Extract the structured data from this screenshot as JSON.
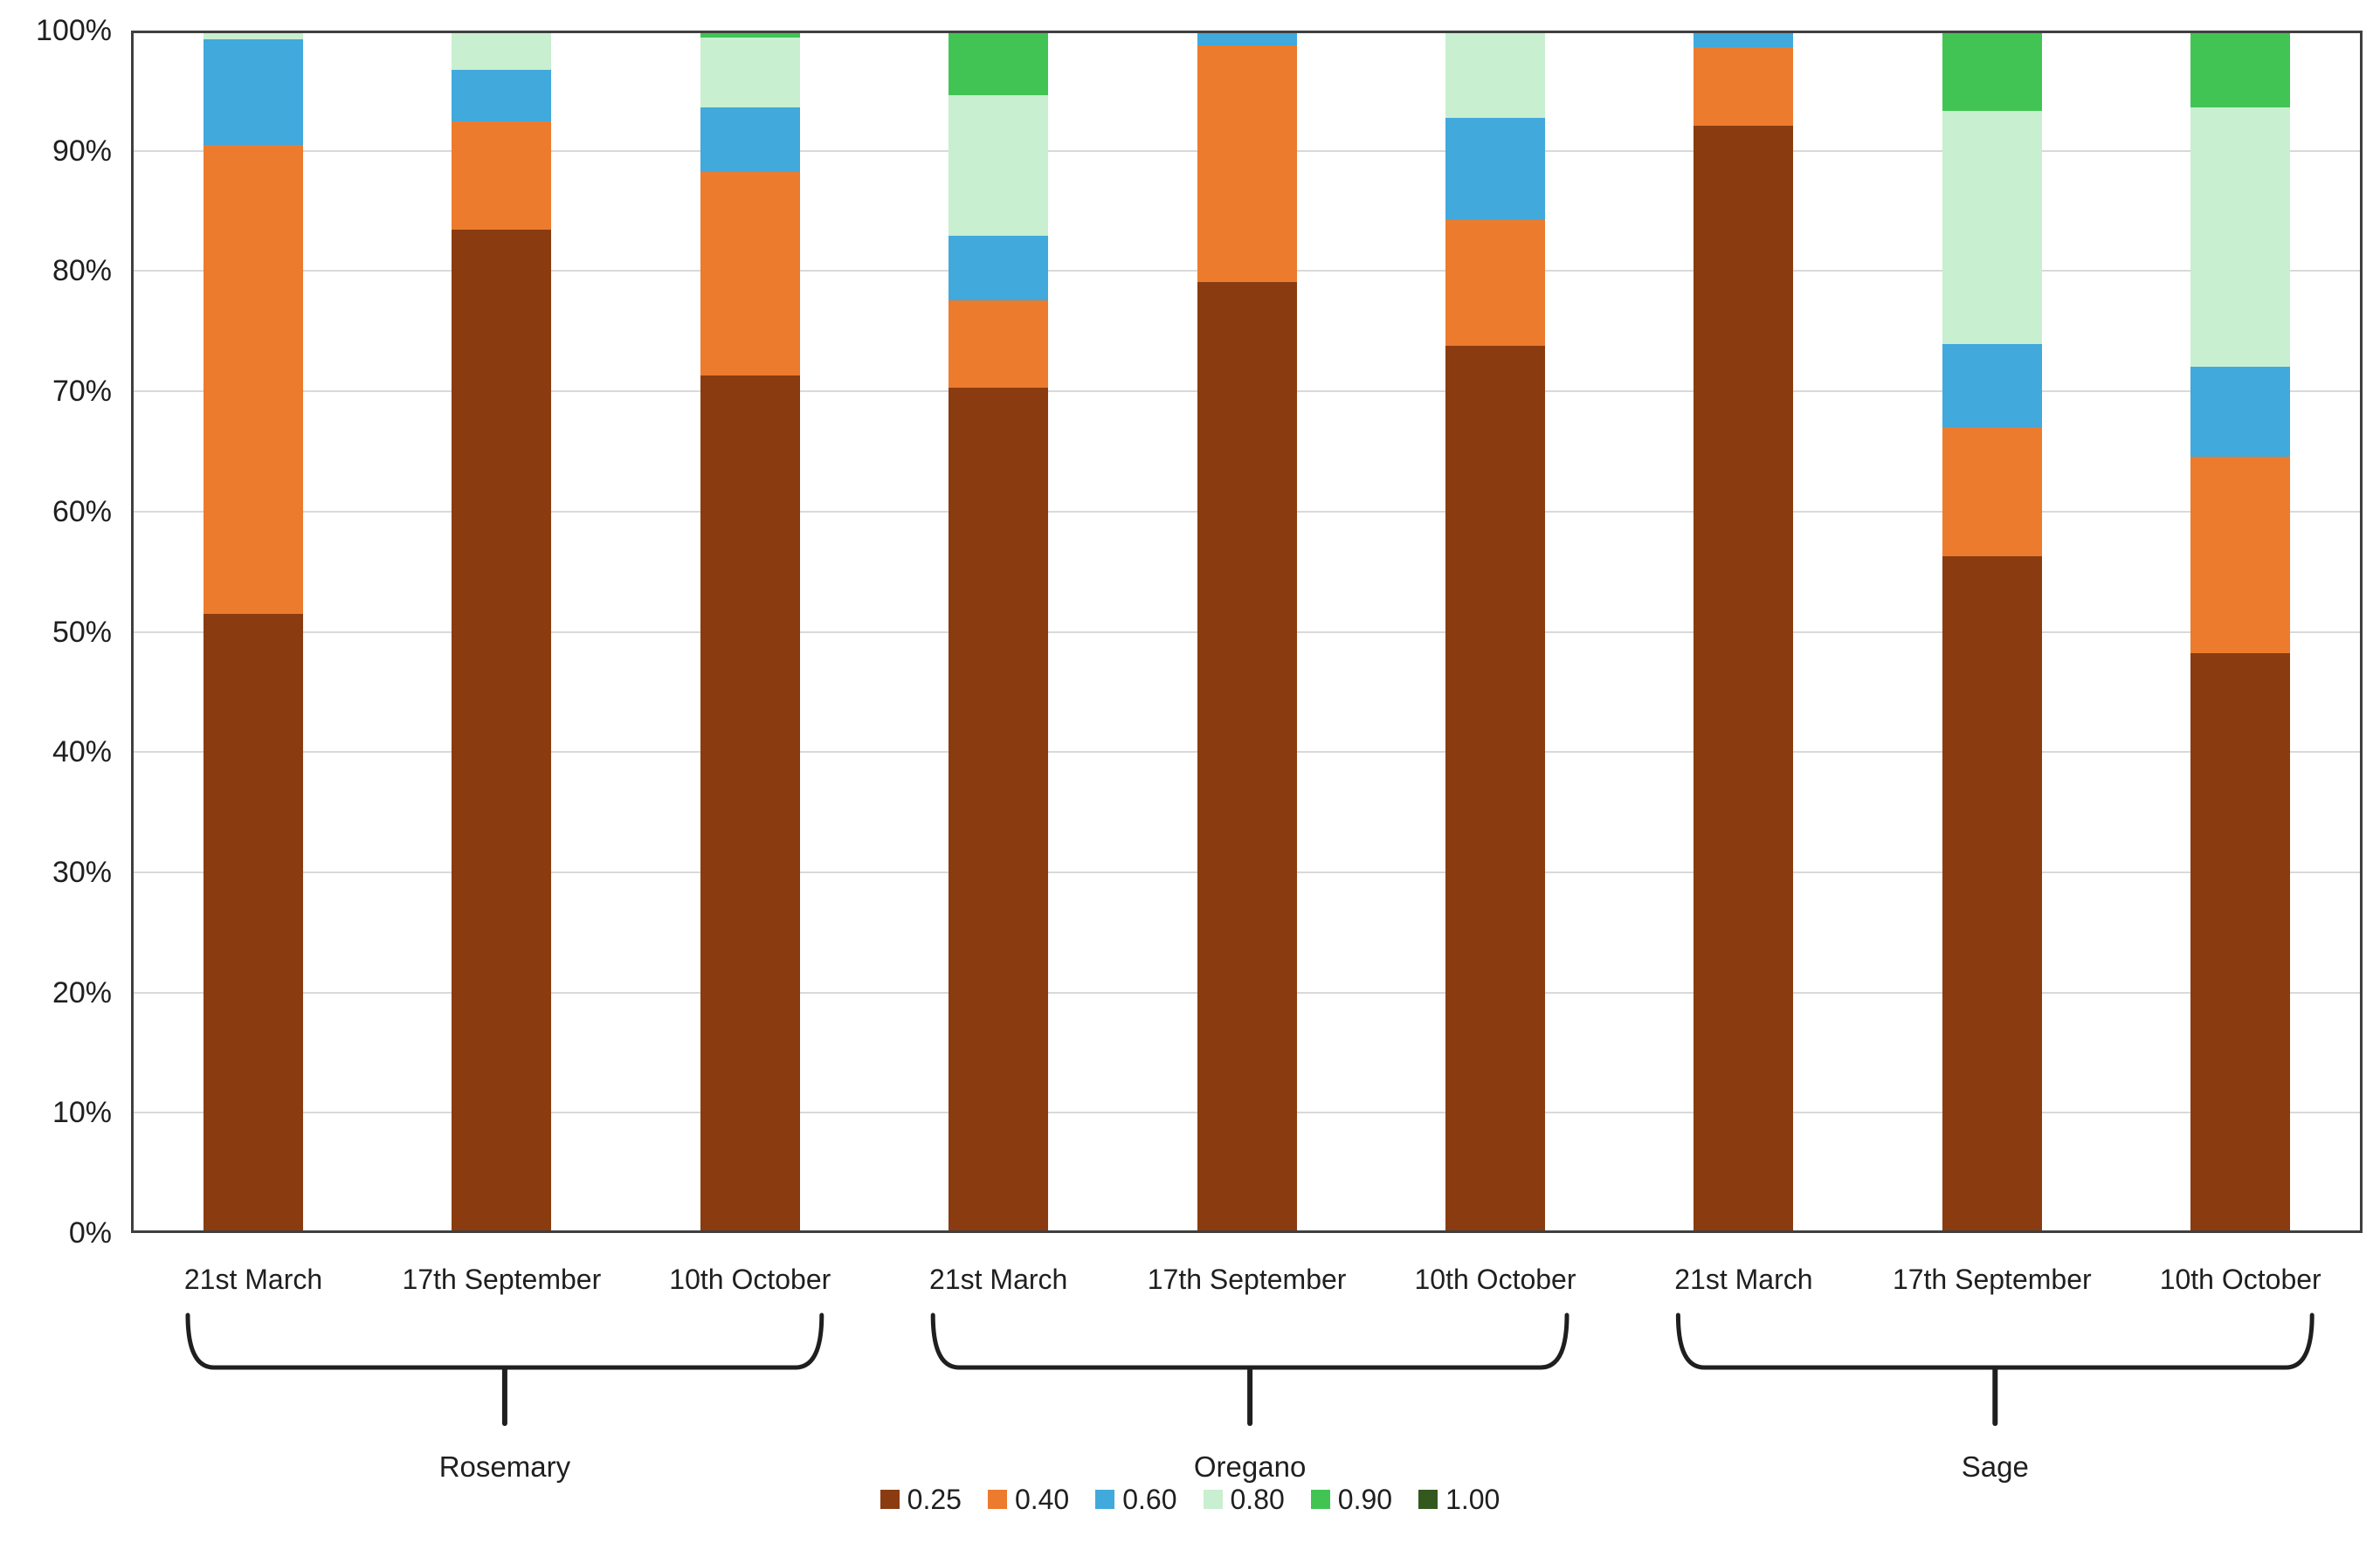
{
  "chart_data": {
    "type": "bar",
    "subtype": "stacked-100-percent",
    "title": "",
    "xlabel": "",
    "ylabel": "",
    "ylim": [
      0,
      100
    ],
    "grid": "horizontal",
    "legend_position": "bottom",
    "y_tick_labels": [
      "0%",
      "10%",
      "20%",
      "30%",
      "40%",
      "50%",
      "60%",
      "70%",
      "80%",
      "90%",
      "100%"
    ],
    "categories": [
      "21st March",
      "17th September",
      "10th October",
      "21st March",
      "17th September",
      "10th October",
      "21st March",
      "17th September",
      "10th October"
    ],
    "groups": [
      {
        "label": "Rosemary",
        "bars": [
          0,
          1,
          2
        ]
      },
      {
        "label": "Oregano",
        "bars": [
          3,
          4,
          5
        ]
      },
      {
        "label": "Sage",
        "bars": [
          6,
          7,
          8
        ]
      }
    ],
    "series": [
      {
        "name": "0.25",
        "color": "#8a3c10",
        "values": [
          51.5,
          83.6,
          71.4,
          70.4,
          79.2,
          73.9,
          92.3,
          56.3,
          48.2
        ]
      },
      {
        "name": "0.40",
        "color": "#ec7b2e",
        "values": [
          39.2,
          9.0,
          17.0,
          7.3,
          19.8,
          10.5,
          6.5,
          10.8,
          16.4
        ]
      },
      {
        "name": "0.60",
        "color": "#41a9dc",
        "values": [
          8.8,
          4.3,
          5.4,
          5.4,
          1.0,
          8.5,
          1.2,
          6.9,
          7.5
        ]
      },
      {
        "name": "0.80",
        "color": "#c8efcf",
        "values": [
          0.5,
          3.1,
          5.8,
          11.7,
          0.0,
          7.1,
          0.0,
          19.5,
          21.7
        ]
      },
      {
        "name": "0.90",
        "color": "#42c455",
        "values": [
          0.0,
          0.0,
          0.4,
          5.2,
          0.0,
          0.0,
          0.0,
          6.5,
          6.2
        ]
      },
      {
        "name": "1.00",
        "color": "#34591f",
        "values": [
          0.0,
          0.0,
          0.0,
          0.0,
          0.0,
          0.0,
          0.0,
          0.0,
          0.0
        ]
      }
    ],
    "colors": {
      "background": "#ffffff",
      "axis": "#3f3f3f",
      "grid": "#d9d9d9",
      "text": "#1f1f1f",
      "bracket": "#1f1f1f"
    }
  }
}
